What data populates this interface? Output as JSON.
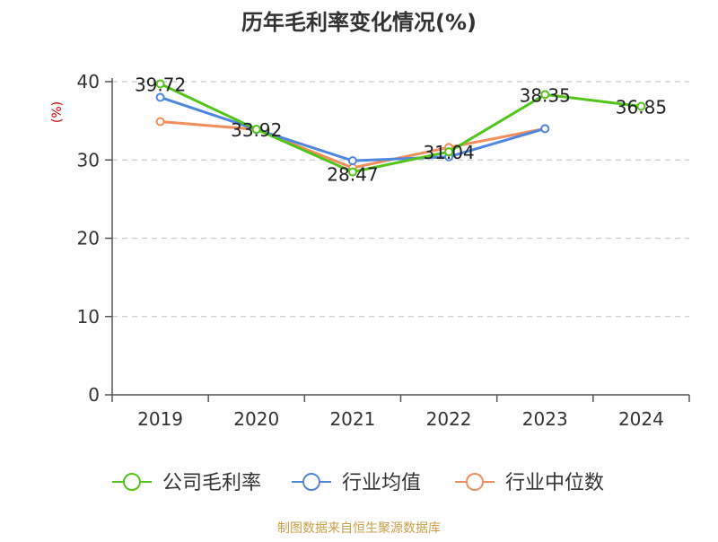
{
  "chart_data": {
    "type": "line",
    "title": "历年毛利率变化情况(%)",
    "ylabel": "(%)",
    "xlabel": "",
    "categories": [
      "2019",
      "2020",
      "2021",
      "2022",
      "2023",
      "2024"
    ],
    "ylim": [
      0,
      40
    ],
    "yticks": [
      0,
      10,
      20,
      30,
      40
    ],
    "grid": true,
    "legend_position": "bottom",
    "series": [
      {
        "name": "公司毛利率",
        "color": "#52c41a",
        "values": [
          39.72,
          33.92,
          28.47,
          31.04,
          38.35,
          36.85
        ],
        "labels": [
          "39.72",
          "33.92",
          "28.47",
          "31.04",
          "38.35",
          "36.85"
        ]
      },
      {
        "name": "行业均值",
        "color": "#4f86e0",
        "values": [
          38.0,
          33.9,
          29.9,
          30.4,
          34.0,
          null
        ],
        "labels": []
      },
      {
        "name": "行业中位数",
        "color": "#f28e5c",
        "values": [
          34.9,
          33.9,
          29.0,
          31.6,
          34.0,
          null
        ],
        "labels": []
      }
    ]
  },
  "footer": {
    "source": "制图数据来自恒生聚源数据库"
  },
  "colors": {
    "title": "#333333",
    "axis": "#555555",
    "ylabel": "#cc0000",
    "grid": "#cccccc",
    "source": "#c8a04a"
  }
}
